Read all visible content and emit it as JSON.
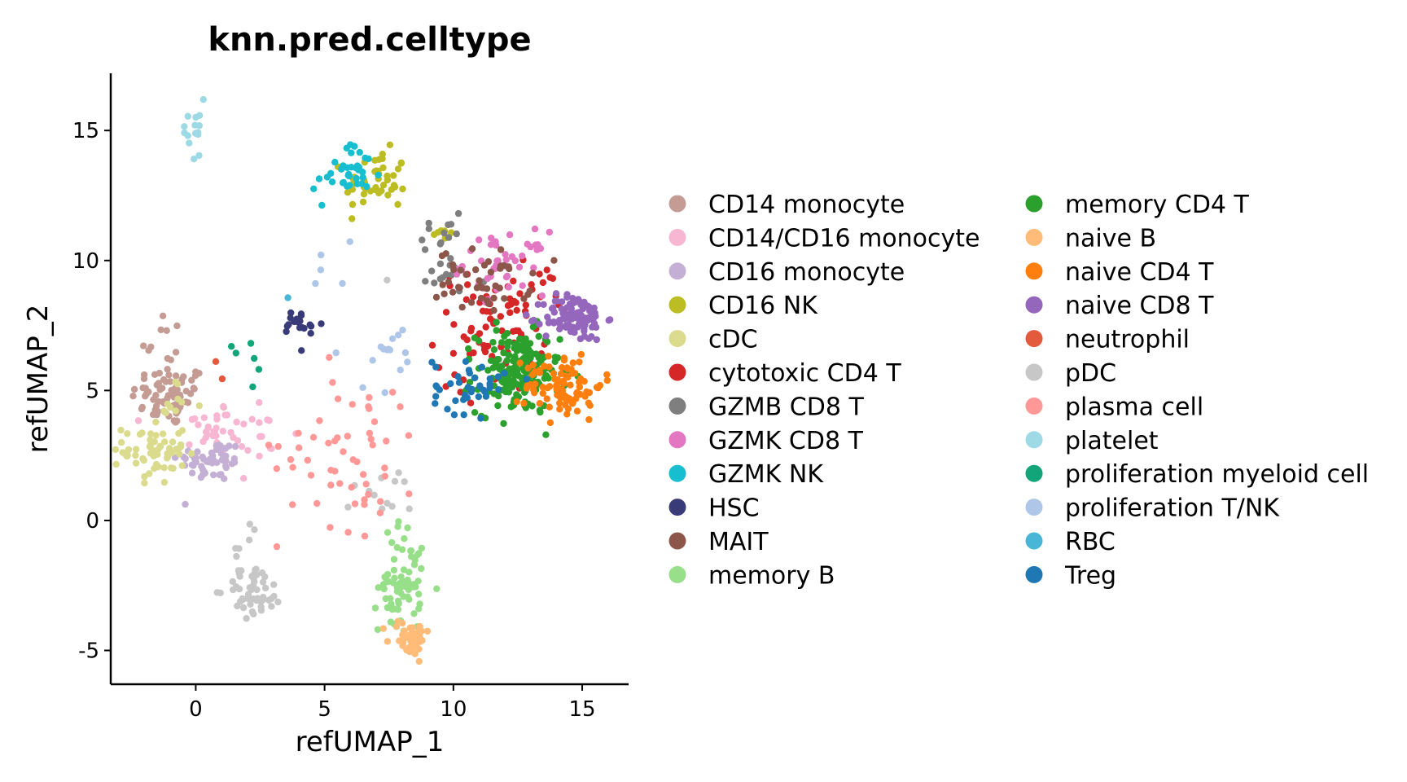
{
  "chart_data": {
    "type": "scatter",
    "title": "knn.pred.celltype",
    "xlabel": "refUMAP_1",
    "ylabel": "refUMAP_2",
    "xlim": [
      -3.3,
      16.8
    ],
    "ylim": [
      -6.3,
      17.2
    ],
    "x_ticks": [
      0,
      5,
      10,
      15
    ],
    "x_tick_labels": [
      "0",
      "5",
      "10",
      "15"
    ],
    "y_ticks": [
      -5,
      0,
      5,
      10,
      15
    ],
    "y_tick_labels": [
      "-5",
      "0",
      "5",
      "10",
      "15"
    ],
    "grid": false,
    "legend_position": "right",
    "legend_columns": 2,
    "series": [
      {
        "name": "CD14 monocyte",
        "color": "#c49c94",
        "clusters": [
          {
            "cx": -1.0,
            "cy": 4.8,
            "sx": 0.75,
            "sy": 0.6,
            "n": 70
          },
          {
            "cx": -1.3,
            "cy": 7.0,
            "sx": 0.4,
            "sy": 0.7,
            "n": 10
          }
        ]
      },
      {
        "name": "CD14/CD16 monocyte",
        "color": "#f7b6d2",
        "clusters": [
          {
            "cx": 0.6,
            "cy": 3.6,
            "sx": 0.7,
            "sy": 0.5,
            "n": 30
          },
          {
            "cx": 2.5,
            "cy": 3.2,
            "sx": 0.6,
            "sy": 0.9,
            "n": 15
          }
        ]
      },
      {
        "name": "CD16 monocyte",
        "color": "#c5b0d5",
        "clusters": [
          {
            "cx": 0.6,
            "cy": 2.3,
            "sx": 0.65,
            "sy": 0.4,
            "n": 55
          }
        ]
      },
      {
        "name": "CD16 NK",
        "color": "#bcbd22",
        "clusters": [
          {
            "cx": 7.0,
            "cy": 13.0,
            "sx": 0.6,
            "sy": 0.6,
            "n": 45
          },
          {
            "cx": 9.6,
            "cy": 11.2,
            "sx": 0.3,
            "sy": 0.4,
            "n": 6
          }
        ]
      },
      {
        "name": "cDC",
        "color": "#dbdb8d",
        "clusters": [
          {
            "cx": -1.6,
            "cy": 2.7,
            "sx": 0.6,
            "sy": 0.65,
            "n": 60
          },
          {
            "cx": -0.7,
            "cy": 4.4,
            "sx": 0.4,
            "sy": 0.5,
            "n": 8
          }
        ]
      },
      {
        "name": "cytotoxic CD4 T",
        "color": "#d62728",
        "clusters": [
          {
            "cx": 11.5,
            "cy": 7.3,
            "sx": 1.1,
            "sy": 1.2,
            "n": 70
          },
          {
            "cx": 12.8,
            "cy": 8.5,
            "sx": 0.8,
            "sy": 0.6,
            "n": 20
          }
        ]
      },
      {
        "name": "GZMB CD8 T",
        "color": "#7f7f7f",
        "clusters": [
          {
            "cx": 9.5,
            "cy": 10.2,
            "sx": 0.6,
            "sy": 0.9,
            "n": 25
          }
        ]
      },
      {
        "name": "GZMK CD8 T",
        "color": "#e377c2",
        "clusters": [
          {
            "cx": 12.0,
            "cy": 9.9,
            "sx": 0.8,
            "sy": 0.6,
            "n": 45
          }
        ]
      },
      {
        "name": "GZMK NK",
        "color": "#17becf",
        "clusters": [
          {
            "cx": 6.2,
            "cy": 13.4,
            "sx": 0.5,
            "sy": 0.5,
            "n": 30
          },
          {
            "cx": 5.0,
            "cy": 12.8,
            "sx": 0.4,
            "sy": 0.4,
            "n": 6
          }
        ]
      },
      {
        "name": "HSC",
        "color": "#393b79",
        "clusters": [
          {
            "cx": 4.1,
            "cy": 7.5,
            "sx": 0.4,
            "sy": 0.35,
            "n": 20
          }
        ]
      },
      {
        "name": "MAIT",
        "color": "#8c564b",
        "clusters": [
          {
            "cx": 11.2,
            "cy": 9.2,
            "sx": 0.9,
            "sy": 0.6,
            "n": 45
          }
        ]
      },
      {
        "name": "memory B",
        "color": "#98df8a",
        "clusters": [
          {
            "cx": 8.0,
            "cy": -2.5,
            "sx": 0.45,
            "sy": 0.9,
            "n": 60
          },
          {
            "cx": 8.0,
            "cy": -0.8,
            "sx": 0.35,
            "sy": 0.5,
            "n": 10
          }
        ]
      },
      {
        "name": "memory CD4 T",
        "color": "#2ca02c",
        "clusters": [
          {
            "cx": 12.5,
            "cy": 5.7,
            "sx": 0.8,
            "sy": 0.8,
            "n": 180
          }
        ]
      },
      {
        "name": "naive B",
        "color": "#ffbb78",
        "clusters": [
          {
            "cx": 8.3,
            "cy": -4.5,
            "sx": 0.4,
            "sy": 0.35,
            "n": 45
          }
        ]
      },
      {
        "name": "naive CD4 T",
        "color": "#ff7f0e",
        "clusters": [
          {
            "cx": 14.3,
            "cy": 5.2,
            "sx": 0.75,
            "sy": 0.65,
            "n": 90
          }
        ]
      },
      {
        "name": "naive CD8 T",
        "color": "#9467bd",
        "clusters": [
          {
            "cx": 14.7,
            "cy": 7.8,
            "sx": 0.6,
            "sy": 0.45,
            "n": 110
          }
        ]
      },
      {
        "name": "neutrophil",
        "color": "#e45a3c",
        "clusters": [
          {
            "cx": 0.9,
            "cy": 5.7,
            "sx": 0.2,
            "sy": 0.2,
            "n": 2
          }
        ]
      },
      {
        "name": "pDC",
        "color": "#c7c7c7",
        "clusters": [
          {
            "cx": 2.3,
            "cy": -2.7,
            "sx": 0.55,
            "sy": 0.5,
            "n": 50
          },
          {
            "cx": 2.0,
            "cy": -0.8,
            "sx": 0.3,
            "sy": 0.4,
            "n": 6
          },
          {
            "cx": 7.3,
            "cy": 1.0,
            "sx": 0.8,
            "sy": 0.5,
            "n": 12
          },
          {
            "cx": 7.5,
            "cy": 9.2,
            "sx": 0.1,
            "sy": 0.1,
            "n": 1
          }
        ]
      },
      {
        "name": "plasma cell",
        "color": "#ff9896",
        "clusters": [
          {
            "cx": 6.0,
            "cy": 2.8,
            "sx": 1.4,
            "sy": 1.6,
            "n": 55
          }
        ]
      },
      {
        "name": "platelet",
        "color": "#9edae5",
        "clusters": [
          {
            "cx": -0.2,
            "cy": 15.0,
            "sx": 0.35,
            "sy": 0.6,
            "n": 15
          }
        ]
      },
      {
        "name": "proliferation myeloid cell",
        "color": "#11a579",
        "clusters": [
          {
            "cx": 2.1,
            "cy": 6.3,
            "sx": 0.4,
            "sy": 0.5,
            "n": 6
          }
        ]
      },
      {
        "name": "proliferation T/NK",
        "color": "#aec7e8",
        "clusters": [
          {
            "cx": 7.5,
            "cy": 6.5,
            "sx": 1.2,
            "sy": 0.7,
            "n": 15
          },
          {
            "cx": 5.2,
            "cy": 9.8,
            "sx": 0.4,
            "sy": 0.6,
            "n": 5
          }
        ]
      },
      {
        "name": "RBC",
        "color": "#49b6d6",
        "clusters": [
          {
            "cx": 3.5,
            "cy": 8.4,
            "sx": 0.2,
            "sy": 0.2,
            "n": 1
          }
        ]
      },
      {
        "name": "Treg",
        "color": "#1f77b4",
        "clusters": [
          {
            "cx": 10.6,
            "cy": 5.2,
            "sx": 0.7,
            "sy": 0.55,
            "n": 40
          }
        ]
      }
    ]
  }
}
